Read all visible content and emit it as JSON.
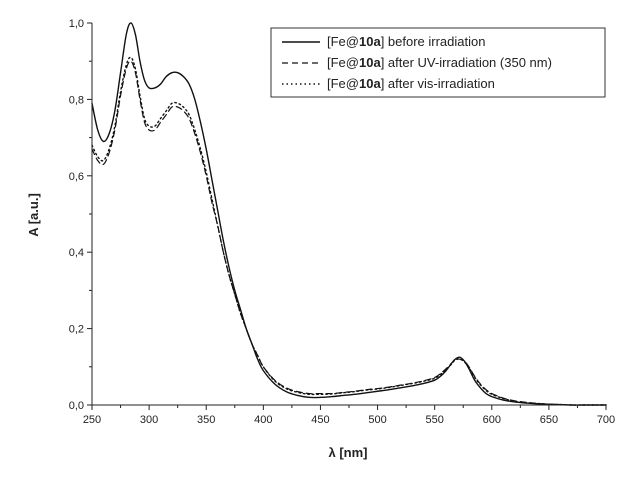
{
  "chart_data": {
    "type": "line",
    "title": "",
    "xlabel": "λ [nm]",
    "ylabel": "A [a.u.]",
    "xlim": [
      250,
      700
    ],
    "ylim": [
      0.0,
      1.0
    ],
    "xticks": [
      250,
      300,
      350,
      400,
      450,
      500,
      550,
      600,
      650,
      700
    ],
    "xtick_labels": [
      "250",
      "300",
      "350",
      "400",
      "450",
      "500",
      "550",
      "600",
      "650",
      "700"
    ],
    "yticks": [
      0.0,
      0.2,
      0.4,
      0.6,
      0.8,
      1.0
    ],
    "ytick_labels": [
      "0,0",
      "0,2",
      "0,4",
      "0,6",
      "0,8",
      "1,0"
    ],
    "grid": false,
    "legend_position": "top-right",
    "series": [
      {
        "name": "[Fe@10a] before irradiation",
        "legend_prefix": "[Fe@",
        "legend_bold": "10a",
        "legend_suffix": "] before irradiation",
        "style": "solid",
        "color": "#111111",
        "x": [
          250,
          255,
          260,
          265,
          270,
          275,
          280,
          284,
          288,
          292,
          296,
          300,
          305,
          310,
          315,
          320,
          325,
          330,
          335,
          340,
          345,
          350,
          355,
          360,
          365,
          370,
          375,
          380,
          385,
          390,
          395,
          400,
          410,
          420,
          430,
          440,
          450,
          460,
          470,
          480,
          490,
          500,
          510,
          520,
          530,
          540,
          550,
          555,
          560,
          565,
          568,
          572,
          576,
          580,
          585,
          590,
          595,
          600,
          610,
          620,
          630,
          640,
          650,
          660,
          670,
          680,
          690,
          700
        ],
        "y": [
          0.79,
          0.72,
          0.69,
          0.71,
          0.77,
          0.87,
          0.97,
          1.0,
          0.97,
          0.9,
          0.85,
          0.83,
          0.83,
          0.84,
          0.86,
          0.87,
          0.87,
          0.86,
          0.84,
          0.8,
          0.74,
          0.67,
          0.59,
          0.51,
          0.43,
          0.36,
          0.3,
          0.25,
          0.2,
          0.16,
          0.12,
          0.09,
          0.055,
          0.035,
          0.025,
          0.02,
          0.02,
          0.022,
          0.025,
          0.028,
          0.032,
          0.036,
          0.04,
          0.045,
          0.05,
          0.056,
          0.065,
          0.075,
          0.09,
          0.11,
          0.12,
          0.125,
          0.115,
          0.095,
          0.065,
          0.045,
          0.03,
          0.022,
          0.013,
          0.008,
          0.005,
          0.003,
          0.002,
          0.001,
          0.0,
          0.0,
          0.0,
          0.0
        ]
      },
      {
        "name": "[Fe@10a] after UV-irradiation (350 nm)",
        "legend_prefix": "[Fe@",
        "legend_bold": "10a",
        "legend_suffix": "] after UV-irradiation (350 nm)",
        "style": "dashed",
        "color": "#111111",
        "x": [
          250,
          255,
          260,
          265,
          270,
          275,
          280,
          284,
          288,
          292,
          296,
          300,
          305,
          310,
          315,
          320,
          325,
          330,
          335,
          340,
          345,
          350,
          355,
          360,
          365,
          370,
          375,
          380,
          385,
          390,
          395,
          400,
          410,
          420,
          430,
          440,
          450,
          460,
          470,
          480,
          490,
          500,
          510,
          520,
          530,
          540,
          550,
          555,
          560,
          565,
          568,
          572,
          576,
          580,
          585,
          590,
          595,
          600,
          610,
          620,
          630,
          640,
          650,
          660,
          670,
          680,
          690,
          700
        ],
        "y": [
          0.67,
          0.64,
          0.63,
          0.66,
          0.72,
          0.81,
          0.88,
          0.9,
          0.87,
          0.8,
          0.74,
          0.72,
          0.72,
          0.74,
          0.76,
          0.78,
          0.78,
          0.77,
          0.75,
          0.71,
          0.66,
          0.6,
          0.53,
          0.47,
          0.4,
          0.34,
          0.29,
          0.24,
          0.2,
          0.16,
          0.13,
          0.1,
          0.065,
          0.045,
          0.035,
          0.03,
          0.03,
          0.03,
          0.033,
          0.036,
          0.04,
          0.043,
          0.047,
          0.052,
          0.057,
          0.063,
          0.072,
          0.082,
          0.095,
          0.11,
          0.12,
          0.12,
          0.115,
          0.1,
          0.075,
          0.055,
          0.04,
          0.03,
          0.018,
          0.011,
          0.007,
          0.004,
          0.002,
          0.001,
          0.0,
          0.0,
          0.0,
          0.0
        ]
      },
      {
        "name": "[Fe@10a] after vis-irradiation",
        "legend_prefix": "[Fe@",
        "legend_bold": "10a",
        "legend_suffix": "] after vis-irradiation",
        "style": "dotted",
        "color": "#111111",
        "x": [
          250,
          255,
          260,
          265,
          270,
          275,
          280,
          284,
          288,
          292,
          296,
          300,
          305,
          310,
          315,
          320,
          325,
          330,
          335,
          340,
          345,
          350,
          355,
          360,
          365,
          370,
          375,
          380,
          385,
          390,
          395,
          400,
          410,
          420,
          430,
          440,
          450,
          460,
          470,
          480,
          490,
          500,
          510,
          520,
          530,
          540,
          550,
          555,
          560,
          565,
          568,
          572,
          576,
          580,
          585,
          590,
          595,
          600,
          610,
          620,
          630,
          640,
          650,
          660,
          670,
          680,
          690,
          700
        ],
        "y": [
          0.68,
          0.65,
          0.64,
          0.67,
          0.73,
          0.82,
          0.89,
          0.91,
          0.88,
          0.81,
          0.75,
          0.73,
          0.73,
          0.75,
          0.77,
          0.79,
          0.79,
          0.78,
          0.76,
          0.72,
          0.67,
          0.61,
          0.54,
          0.47,
          0.4,
          0.34,
          0.29,
          0.24,
          0.2,
          0.16,
          0.13,
          0.1,
          0.063,
          0.043,
          0.033,
          0.028,
          0.028,
          0.029,
          0.032,
          0.035,
          0.039,
          0.042,
          0.046,
          0.051,
          0.056,
          0.062,
          0.07,
          0.08,
          0.093,
          0.108,
          0.118,
          0.12,
          0.113,
          0.098,
          0.073,
          0.053,
          0.038,
          0.028,
          0.017,
          0.01,
          0.006,
          0.004,
          0.002,
          0.001,
          0.0,
          0.0,
          0.0,
          0.0
        ]
      }
    ]
  }
}
